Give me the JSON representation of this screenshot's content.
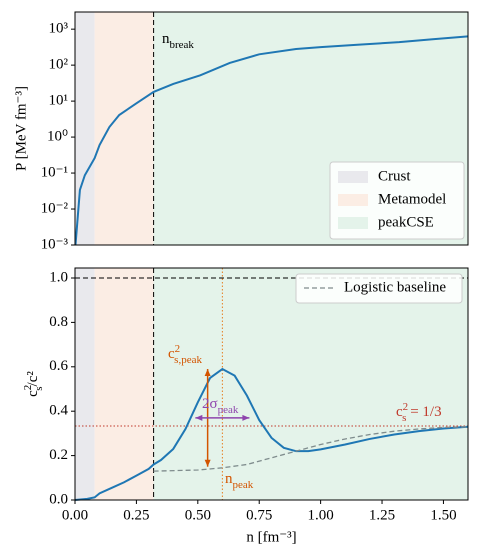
{
  "chart_data": [
    {
      "type": "line",
      "ylabel": "P [MeV fm⁻³]",
      "yscale": "log",
      "xlim": [
        0,
        1.6
      ],
      "ylim": [
        0.001,
        3000
      ],
      "yticks": [
        {
          "value": 0.001,
          "label": "10⁻³"
        },
        {
          "value": 0.01,
          "label": "10⁻²"
        },
        {
          "value": 0.1,
          "label": "10⁻¹"
        },
        {
          "value": 1,
          "label": "10⁰"
        },
        {
          "value": 10,
          "label": "10¹"
        },
        {
          "value": 100,
          "label": "10²"
        },
        {
          "value": 1000,
          "label": "10³"
        }
      ],
      "regions": [
        {
          "name": "Crust",
          "color": "#e9e9ed",
          "x": [
            0,
            0.08
          ]
        },
        {
          "name": "Metamodel",
          "color": "#fbede4",
          "x": [
            0.08,
            0.32
          ]
        },
        {
          "name": "peakCSE",
          "color": "#e4f3ea",
          "x": [
            0.32,
            1.6
          ]
        }
      ],
      "legend": "lower right",
      "vlines": [
        {
          "x": 0.32,
          "color": "#000000",
          "style": "dashed"
        }
      ],
      "hlines": [],
      "series": [
        {
          "color": "#1f77b4",
          "x": [
            0.002,
            0.02,
            0.04,
            0.08,
            0.1,
            0.14,
            0.18,
            0.25,
            0.32,
            0.4,
            0.51,
            0.63,
            0.75,
            0.9,
            1.0,
            1.15,
            1.32,
            1.45,
            1.6
          ],
          "values": [
            0.001,
            0.034,
            0.087,
            0.26,
            0.6,
            1.9,
            4.1,
            8.7,
            18,
            30,
            52,
            115,
            200,
            280,
            316,
            370,
            436,
            520,
            630
          ]
        }
      ],
      "arrows": [],
      "annotations": [
        {
          "base": "n",
          "sub": "break",
          "color": "#000000"
        }
      ]
    },
    {
      "type": "line",
      "xlabel": "n [fm⁻³]",
      "ylabel": {
        "base": "c",
        "sup": "2",
        "sub": "s",
        "tail": "/c²"
      },
      "xlim": [
        0,
        1.6
      ],
      "ylim": [
        0,
        1.045
      ],
      "xticks": [
        {
          "value": 0,
          "label": "0.00"
        },
        {
          "value": 0.25,
          "label": "0.25"
        },
        {
          "value": 0.5,
          "label": "0.50"
        },
        {
          "value": 0.75,
          "label": "0.75"
        },
        {
          "value": 1,
          "label": "1.00"
        },
        {
          "value": 1.25,
          "label": "1.25"
        },
        {
          "value": 1.5,
          "label": "1.50"
        }
      ],
      "yticks": [
        {
          "value": 0,
          "label": "0.0"
        },
        {
          "value": 0.2,
          "label": "0.2"
        },
        {
          "value": 0.4,
          "label": "0.4"
        },
        {
          "value": 0.6,
          "label": "0.6"
        },
        {
          "value": 0.8,
          "label": "0.8"
        },
        {
          "value": 1,
          "label": "1.0"
        }
      ],
      "regions": [
        {
          "color": "#e9e9ed",
          "x": [
            0,
            0.08
          ]
        },
        {
          "color": "#fbede4",
          "x": [
            0.08,
            0.32
          ]
        },
        {
          "color": "#e4f3ea",
          "x": [
            0.32,
            1.6
          ]
        }
      ],
      "legend": "upper right",
      "vlines": [
        {
          "x": 0.32,
          "color": "#000000",
          "style": "dashed"
        },
        {
          "x": 0.6,
          "color": "#e67e22",
          "style": "dotted"
        }
      ],
      "hlines": [
        {
          "y": 1.0,
          "color": "#000000",
          "style": "dashed"
        },
        {
          "y": 0.3333,
          "color": "#c0392b",
          "style": "dotted"
        }
      ],
      "series": [
        {
          "color": "#1f77b4",
          "x": [
            0,
            0.05,
            0.08,
            0.1,
            0.15,
            0.2,
            0.25,
            0.3,
            0.32,
            0.35,
            0.4,
            0.45,
            0.5,
            0.55,
            0.6,
            0.65,
            0.7,
            0.75,
            0.8,
            0.85,
            0.9,
            0.95,
            1.0,
            1.1,
            1.2,
            1.3,
            1.4,
            1.5,
            1.6
          ],
          "values": [
            0,
            0.005,
            0.012,
            0.03,
            0.055,
            0.08,
            0.11,
            0.14,
            0.16,
            0.18,
            0.23,
            0.32,
            0.44,
            0.55,
            0.59,
            0.56,
            0.47,
            0.36,
            0.28,
            0.235,
            0.22,
            0.22,
            0.228,
            0.25,
            0.275,
            0.295,
            0.31,
            0.322,
            0.33
          ]
        },
        {
          "name": "Logistic baseline",
          "color": "#7f8c8d",
          "style": "dashed",
          "x": [
            0.32,
            0.5,
            0.6,
            0.7,
            0.8,
            0.9,
            1.0,
            1.1,
            1.2,
            1.3,
            1.4,
            1.5,
            1.6
          ],
          "values": [
            0.13,
            0.135,
            0.145,
            0.16,
            0.19,
            0.22,
            0.25,
            0.275,
            0.295,
            0.31,
            0.32,
            0.327,
            0.33
          ]
        }
      ],
      "arrows": [
        {
          "x": [
            0.54,
            0.54
          ],
          "y": [
            0.15,
            0.59
          ],
          "color": "#d35400"
        },
        {
          "x": [
            0.49,
            0.71
          ],
          "y": [
            0.37,
            0.37
          ],
          "color": "#8e44ad"
        }
      ],
      "annotations": [
        {
          "base": "c",
          "sup": "2",
          "sub": "s,peak",
          "color": "#d35400"
        },
        {
          "base": "2σ",
          "sub": "peak",
          "color": "#8e44ad"
        },
        {
          "base": "n",
          "sub": "peak",
          "color": "#d35400"
        },
        {
          "base": "c",
          "sup": "2",
          "sub": "s",
          "tail": " = 1/3",
          "color": "#c0392b"
        }
      ]
    }
  ]
}
